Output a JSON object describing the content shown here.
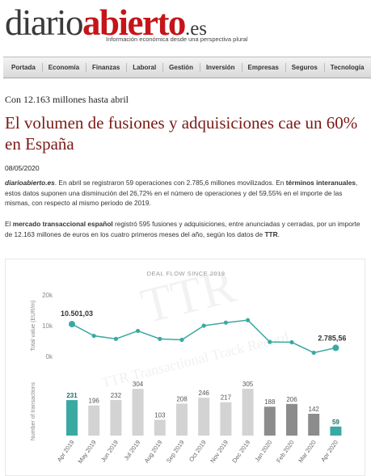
{
  "site": {
    "logo_part1": "diario",
    "logo_part2": "abierto",
    "logo_part3": ".es",
    "tagline": "Información económica desde una perspectiva plural"
  },
  "nav": [
    "Portada",
    "Economía",
    "Finanzas",
    "Laboral",
    "Gestión",
    "Inversión",
    "Empresas",
    "Seguros",
    "Tecnología"
  ],
  "article": {
    "kicker": "Con 12.163 millones hasta abril",
    "title": "El volumen de fusiones y adquisiciones cae un 60% en España",
    "date": "08/05/2020",
    "p1_a": "diarioabierto.es",
    "p1_b": ". En abril se registraron 59 operaciones con 2.785,6 millones movilizados. En ",
    "p1_c": "términos interanuales",
    "p1_d": ", estos datos suponen una disminución del 26,72% en el número de operaciones y del 59,55% en el importe de las mismas, con respecto al mismo periodo de 2019.",
    "p2_a": "El ",
    "p2_b": "mercado transaccional español",
    "p2_c": " registró 595 fusiones y adquisiciones, entre anunciadas y cerradas, por un importe de 12.163 millones de euros en los cuatro primeros meses del año, según los datos de ",
    "p2_d": "TTR",
    "p2_e": "."
  },
  "colors": {
    "brand_red": "#c5151a",
    "title_red": "#7a1a16",
    "teal": "#3aa9a2",
    "bar_gray": "#d3d3d3",
    "bar_dark": "#8c8c8c"
  },
  "chart_data": {
    "type": "line+bar",
    "title": "DEAL FLOW SINCE 2019",
    "watermark": "TTR Transactional Track Record",
    "categories": [
      "Apr 2019",
      "May 2019",
      "Jun 2019",
      "Jul 2019",
      "Aug 2019",
      "Sep 2019",
      "Oct 2019",
      "Nov 2019",
      "Dec 2019",
      "Jan 2020",
      "Feb 2020",
      "Mar 2020",
      "Apr 2020"
    ],
    "line": {
      "ylabel": "Total value (EUR/m)",
      "yticks": [
        "20k",
        "10k",
        "0k"
      ],
      "ylim": [
        0,
        20000
      ],
      "values": [
        10501.03,
        6700,
        5700,
        8300,
        5700,
        5400,
        10000,
        11000,
        11800,
        4700,
        4600,
        1200,
        2785.56
      ],
      "labels": {
        "first": "10.501,03",
        "last": "2.785,56"
      }
    },
    "bars": {
      "ylabel": "Number of transactions",
      "values": [
        231,
        196,
        232,
        304,
        103,
        208,
        246,
        217,
        305,
        188,
        206,
        142,
        59
      ]
    }
  }
}
